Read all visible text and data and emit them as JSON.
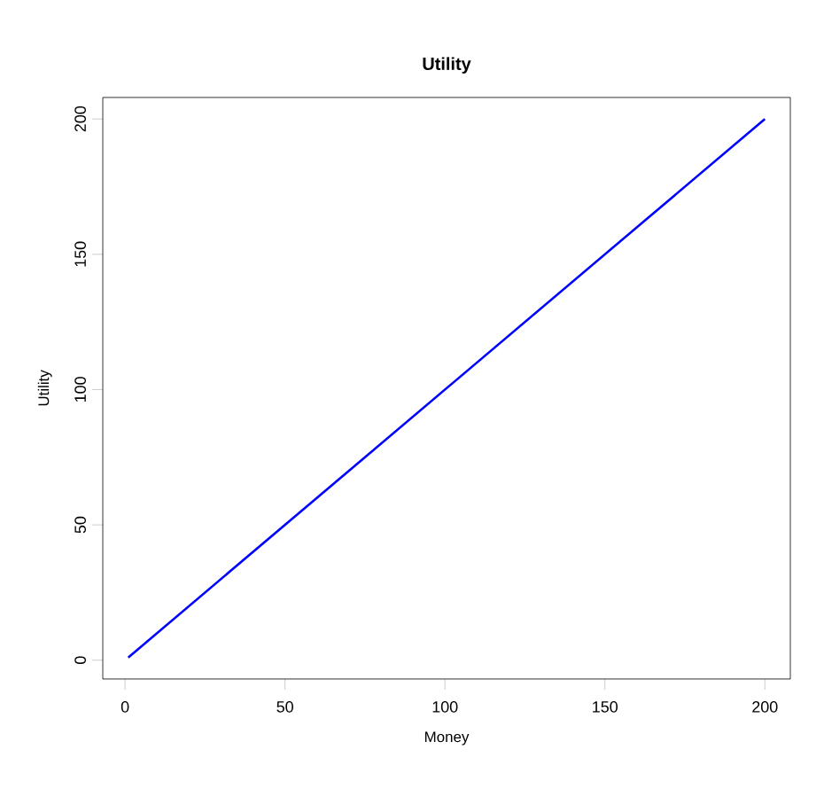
{
  "chart_data": {
    "type": "line",
    "title": "Utility",
    "xlabel": "Money",
    "ylabel": "Utility",
    "x": [
      1,
      200
    ],
    "series": [
      {
        "color": "#0000ff",
        "values": [
          1,
          200
        ]
      }
    ],
    "xlim": [
      -6.96,
      207.96
    ],
    "ylim": [
      -6.96,
      207.96
    ],
    "xticks": [
      0,
      50,
      100,
      150,
      200
    ],
    "yticks": [
      0,
      50,
      100,
      150,
      200
    ],
    "line_style": "solid"
  }
}
